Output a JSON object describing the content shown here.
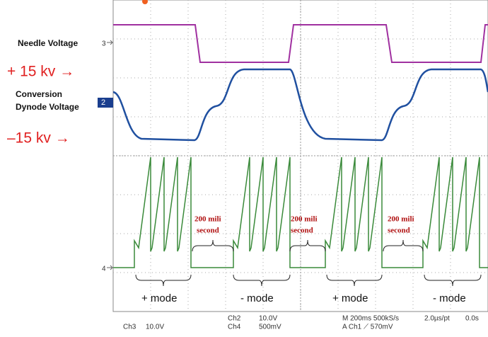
{
  "labels": {
    "needle_voltage": "Needle Voltage",
    "plus_15kv": "+ 15 kv →",
    "conversion": "Conversion",
    "dynode": "Dynode Voltage",
    "minus_15kv": "–15 kv →"
  },
  "channel_markers": {
    "ch3": "3",
    "ch2": "2",
    "ch4": "4"
  },
  "gaps": [
    {
      "line1": "200 mili",
      "line2": "second"
    },
    {
      "line1": "200 mili",
      "line2": "second"
    },
    {
      "line1": "200 mili",
      "line2": "second"
    }
  ],
  "modes": [
    "+ mode",
    "- mode",
    "+ mode",
    "- mode"
  ],
  "status": {
    "ch3": "Ch3",
    "ch3_scale": "10.0V",
    "ch2": "Ch2",
    "ch2_scale": "10.0V",
    "ch4": "Ch4",
    "ch4_scale": "500mV",
    "timebase": "M 200ms 500kS/s",
    "trigger": "A Ch1 ⟋ 570mV",
    "resolution": "2.0µs/pt",
    "offset": "0.0s"
  }
}
